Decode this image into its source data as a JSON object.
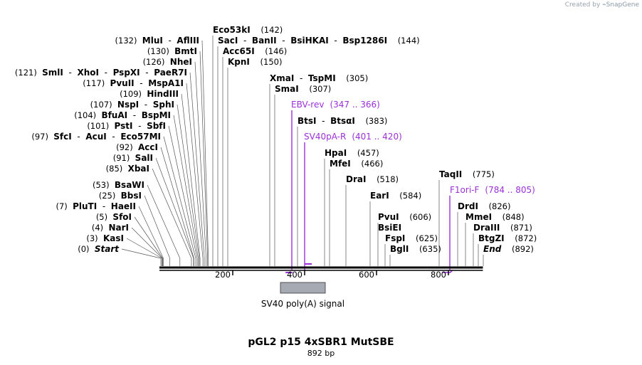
{
  "credit": {
    "prefix": "Created by",
    "brand": "SnapGene"
  },
  "map": {
    "title": "pGL2 p15 4xSBR1 MutSBE",
    "length_label": "892 bp",
    "length_bp": 892,
    "colors": {
      "primer": "#9b30d9",
      "feature_fill": "#a6abb3",
      "line": "#000000"
    }
  },
  "ticks": [
    {
      "bp": 200,
      "label": "200"
    },
    {
      "bp": 400,
      "label": "400"
    },
    {
      "bp": 600,
      "label": "600"
    },
    {
      "bp": 800,
      "label": "800"
    }
  ],
  "site_labels": [
    {
      "parts": [
        "Eco53kI"
      ],
      "pos": "(142)",
      "pos_before": false,
      "sites": [
        142
      ]
    },
    {
      "parts": [
        "SacI",
        "BanII",
        "BsiHKAI",
        "Bsp1286I"
      ],
      "pos": "(144)",
      "pos_before": false,
      "sites": [
        144
      ]
    },
    {
      "parts": [
        "Acc65I"
      ],
      "pos": "(146)",
      "pos_before": false,
      "sites": [
        146
      ]
    },
    {
      "parts": [
        "KpnI"
      ],
      "pos": "(150)",
      "pos_before": false,
      "sites": [
        150
      ]
    },
    {
      "parts": [
        "MluI",
        "AflIII"
      ],
      "pos": "(132)",
      "pos_before": true,
      "sites": [
        132
      ]
    },
    {
      "parts": [
        "BmtI"
      ],
      "pos": "(130)",
      "pos_before": true,
      "sites": [
        130
      ]
    },
    {
      "parts": [
        "NheI"
      ],
      "pos": "(126)",
      "pos_before": true,
      "sites": [
        126
      ]
    },
    {
      "parts": [
        "SmlI",
        "XhoI",
        "PspXI",
        "PaeR7I"
      ],
      "pos": "(121)",
      "pos_before": true,
      "sites": [
        121
      ]
    },
    {
      "parts": [
        "PvuII",
        "MspA1I"
      ],
      "pos": "(117)",
      "pos_before": true,
      "sites": [
        117
      ]
    },
    {
      "parts": [
        "HindIII"
      ],
      "pos": "(109)",
      "pos_before": true,
      "sites": [
        109
      ]
    },
    {
      "parts": [
        "NspI",
        "SphI"
      ],
      "pos": "(107)",
      "pos_before": true,
      "sites": [
        107
      ]
    },
    {
      "parts": [
        "BfuAI",
        "BspMI"
      ],
      "pos": "(104)",
      "pos_before": true,
      "sites": [
        104
      ]
    },
    {
      "parts": [
        "PstI",
        "SbfI"
      ],
      "pos": "(101)",
      "pos_before": true,
      "sites": [
        101
      ]
    },
    {
      "parts": [
        "SfcI",
        "AcuI",
        "Eco57MI"
      ],
      "pos": "(97)",
      "pos_before": true,
      "sites": [
        97
      ]
    },
    {
      "parts": [
        "AccI"
      ],
      "pos": "(92)",
      "pos_before": true,
      "sites": [
        92
      ]
    },
    {
      "parts": [
        "SalI"
      ],
      "pos": "(91)",
      "pos_before": true,
      "sites": [
        91
      ]
    },
    {
      "parts": [
        "XbaI"
      ],
      "pos": "(85)",
      "pos_before": true,
      "sites": [
        85
      ]
    },
    {
      "parts": [
        "BsaWI"
      ],
      "pos": "(53)",
      "pos_before": true,
      "sites": [
        53
      ]
    },
    {
      "parts": [
        "BbsI"
      ],
      "pos": "(25)",
      "pos_before": true,
      "sites": [
        25
      ]
    },
    {
      "parts": [
        "PluTI",
        "HaeII"
      ],
      "pos": "(7)",
      "pos_before": true,
      "sites": [
        7
      ]
    },
    {
      "parts": [
        "SfoI"
      ],
      "pos": "(5)",
      "pos_before": true,
      "sites": [
        5
      ]
    },
    {
      "parts": [
        "NarI"
      ],
      "pos": "(4)",
      "pos_before": true,
      "sites": [
        4
      ]
    },
    {
      "parts": [
        "KasI"
      ],
      "pos": "(3)",
      "pos_before": true,
      "sites": [
        3
      ]
    },
    {
      "parts": [
        "Start"
      ],
      "pos": "(0)",
      "pos_before": true,
      "italic": true,
      "sites": [
        0
      ]
    },
    {
      "parts": [
        "XmaI",
        "TspMI"
      ],
      "pos": "(305)",
      "pos_before": false,
      "sites": [
        305
      ]
    },
    {
      "parts": [
        "SmaI"
      ],
      "pos": "(307)",
      "pos_before": false,
      "sites": [
        307
      ]
    },
    {
      "parts": [
        "BtsI",
        "BtsαI"
      ],
      "pos": "(383)",
      "pos_before": false,
      "sites": [
        383
      ]
    },
    {
      "parts": [
        "HpaI"
      ],
      "pos": "(457)",
      "pos_before": false,
      "sites": [
        457
      ]
    },
    {
      "parts": [
        "MfeI"
      ],
      "pos": "(466)",
      "pos_before": false,
      "sites": [
        466
      ]
    },
    {
      "parts": [
        "DraI"
      ],
      "pos": "(518)",
      "pos_before": false,
      "sites": [
        518
      ]
    },
    {
      "parts": [
        "EarI"
      ],
      "pos": "(584)",
      "pos_before": false,
      "sites": [
        584
      ]
    },
    {
      "parts": [
        "PvuI"
      ],
      "pos": "(606)",
      "pos_before": false,
      "sites": [
        606
      ]
    },
    {
      "parts": [
        "BsiEI"
      ],
      "pos": "",
      "pos_before": false,
      "sites": [
        606
      ]
    },
    {
      "parts": [
        "FspI"
      ],
      "pos": "(625)",
      "pos_before": false,
      "sites": [
        625
      ]
    },
    {
      "parts": [
        "BglI"
      ],
      "pos": "(635)",
      "pos_before": false,
      "sites": [
        635
      ]
    },
    {
      "parts": [
        "TaqII"
      ],
      "pos": "(775)",
      "pos_before": false,
      "sites": [
        775
      ]
    },
    {
      "parts": [
        "DrdI"
      ],
      "pos": "(826)",
      "pos_before": false,
      "sites": [
        826
      ]
    },
    {
      "parts": [
        "MmeI"
      ],
      "pos": "(848)",
      "pos_before": false,
      "sites": [
        848
      ]
    },
    {
      "parts": [
        "DraIII"
      ],
      "pos": "(871)",
      "pos_before": false,
      "sites": [
        871
      ]
    },
    {
      "parts": [
        "BtgZI"
      ],
      "pos": "(872)",
      "pos_before": false,
      "sites": [
        872
      ]
    },
    {
      "parts": [
        "End"
      ],
      "pos": "(892)",
      "pos_before": false,
      "italic": true,
      "sites": [
        892
      ]
    }
  ],
  "primers": [
    {
      "name": "EBV-rev",
      "range": "(347 .. 366)",
      "start": 347,
      "end": 366,
      "direction": "reverse"
    },
    {
      "name": "SV40pA-R",
      "range": "(401 .. 420)",
      "start": 401,
      "end": 420,
      "direction": "reverse"
    },
    {
      "name": "F1ori-F",
      "range": "(784 .. 805)",
      "start": 784,
      "end": 805,
      "direction": "forward"
    }
  ],
  "features": [
    {
      "name": "SV40 poly(A) signal",
      "start": 337,
      "end": 458
    }
  ]
}
